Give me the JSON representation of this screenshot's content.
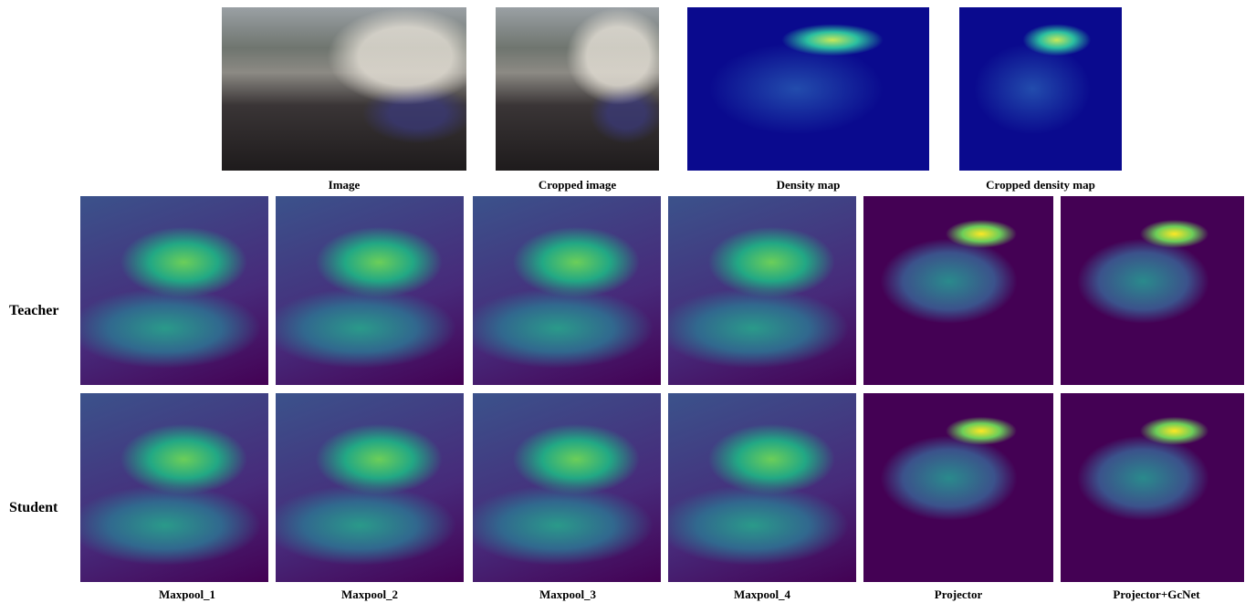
{
  "top_row": [
    {
      "caption": "Image"
    },
    {
      "caption": "Cropped image"
    },
    {
      "caption": "Density map"
    },
    {
      "caption": "Cropped density map"
    }
  ],
  "rows": [
    {
      "label": "Teacher"
    },
    {
      "label": "Student"
    }
  ],
  "columns": [
    "Maxpool_1",
    "Maxpool_2",
    "Maxpool_3",
    "Maxpool_4",
    "Projector",
    "Projector+GcNet"
  ]
}
